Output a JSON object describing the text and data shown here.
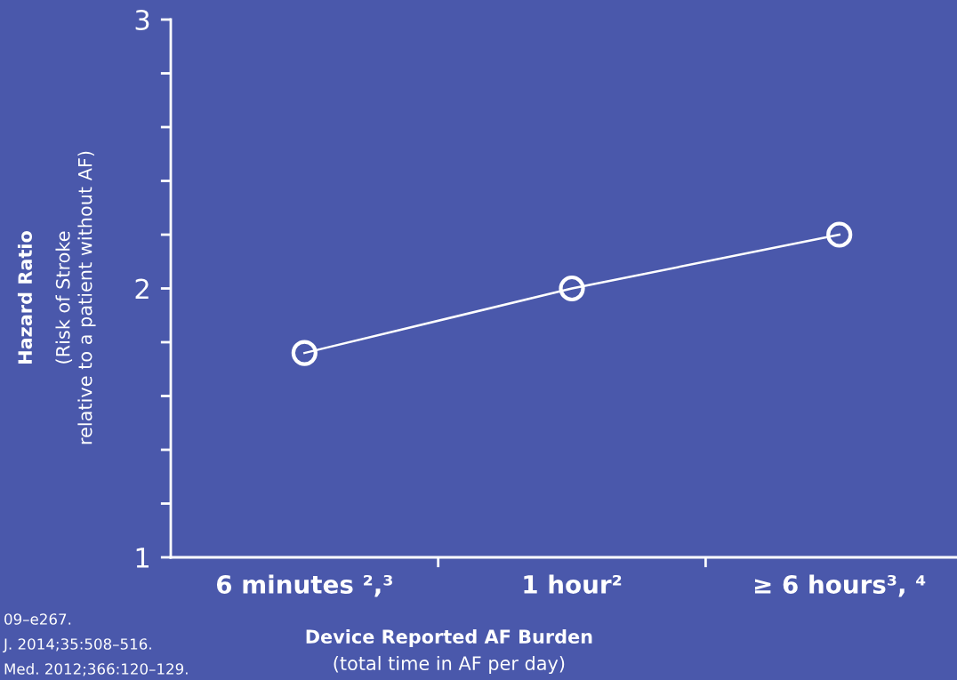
{
  "chart_data": {
    "type": "line",
    "xlabel": "Device Reported AF Burden\n(total time in AF per day)",
    "ylabel": "Hazard Ratio\n(Risk of Stroke\nrelative to a patient without AF)",
    "categories": [
      "6 minutes ²,³",
      "1 hour²",
      "≥ 6 hours³, ⁴"
    ],
    "series": [
      {
        "color": "#ffffff",
        "values": [
          1.76,
          2.0,
          2.2
        ]
      }
    ],
    "ylim": [
      1,
      3
    ],
    "yticks": [
      1,
      {
        "value": 1.2,
        "label": null
      },
      {
        "value": 1.4,
        "label": null
      },
      {
        "value": 1.6,
        "label": null
      },
      {
        "value": 1.8,
        "label": null
      },
      2,
      {
        "value": 2.2,
        "label": null
      },
      {
        "value": 2.4,
        "label": null
      },
      {
        "value": 2.6,
        "label": null
      },
      {
        "value": 2.8,
        "label": null
      },
      3
    ],
    "marker": "circle",
    "line_style": "solid",
    "grid": false,
    "legend": false,
    "annotations": [
      "09–e267.",
      "J. 2014;35:508–516.",
      "Med. 2012;366:120–129."
    ]
  }
}
